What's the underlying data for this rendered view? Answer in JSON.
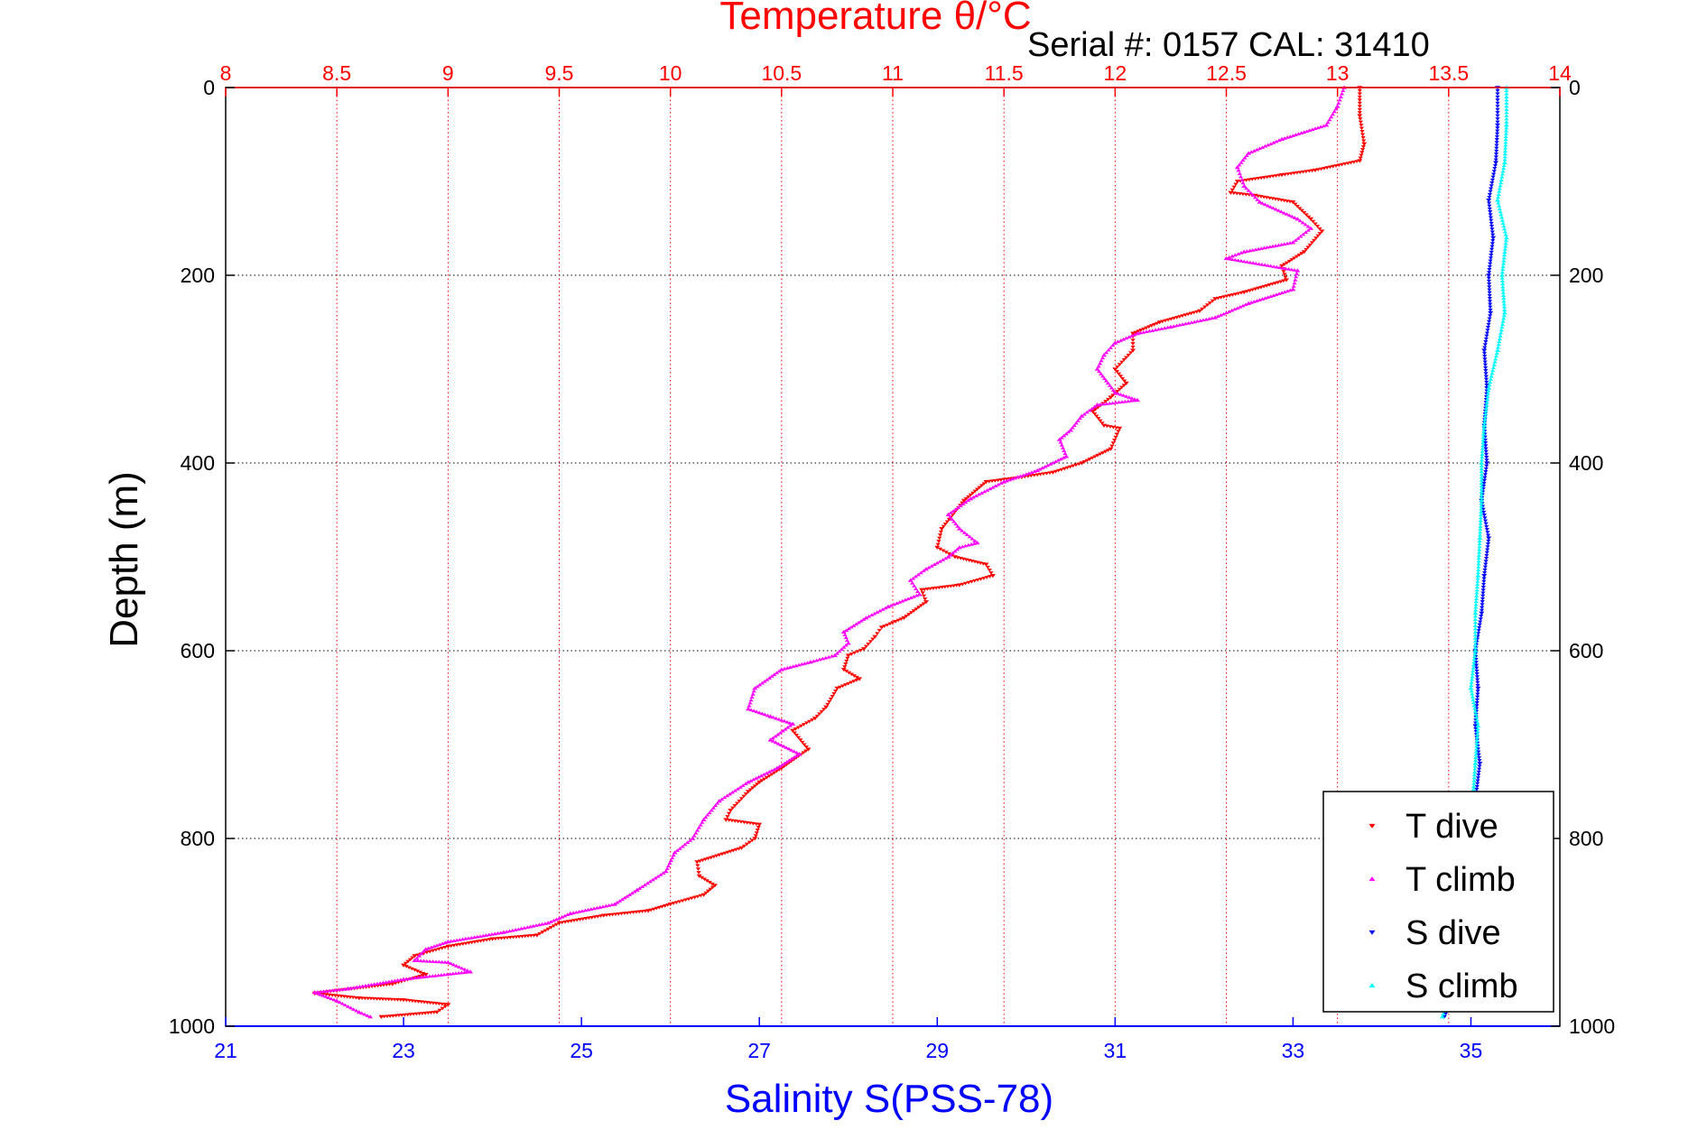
{
  "chart_data": {
    "type": "scatter",
    "title": "Temperature θ/°C",
    "subtitle": "Serial #: 0157  CAL: 31410",
    "xlabel": "Salinity S(PSS-78)",
    "ylabel": "Depth (m)",
    "top_axis": {
      "range": [
        8,
        14
      ],
      "ticks": [
        "8",
        "8.5",
        "9",
        "9.5",
        "10",
        "10.5",
        "11",
        "11.5",
        "12",
        "12.5",
        "13",
        "13.5",
        "14"
      ],
      "color": "#ff0000"
    },
    "bottom_axis": {
      "range": [
        21,
        36
      ],
      "ticks": [
        "21",
        "23",
        "25",
        "27",
        "29",
        "31",
        "33",
        "35"
      ],
      "color": "#0000ff"
    },
    "y_axis": {
      "range": [
        0,
        1000
      ],
      "reversed": true,
      "ticks": [
        "0",
        "200",
        "400",
        "600",
        "800",
        "1000"
      ]
    },
    "grid": true,
    "legend_position": "bottom-right",
    "series": [
      {
        "name": "T dive",
        "axis": "top",
        "color": "#ff0000",
        "marker": "triangle-down",
        "points": [
          [
            13.1,
            0
          ],
          [
            13.1,
            30
          ],
          [
            13.12,
            60
          ],
          [
            13.1,
            78
          ],
          [
            12.9,
            88
          ],
          [
            12.75,
            93
          ],
          [
            12.55,
            100
          ],
          [
            12.52,
            112
          ],
          [
            12.63,
            115
          ],
          [
            12.8,
            122
          ],
          [
            12.88,
            140
          ],
          [
            12.93,
            153
          ],
          [
            12.85,
            175
          ],
          [
            12.75,
            190
          ],
          [
            12.77,
            205
          ],
          [
            12.58,
            218
          ],
          [
            12.45,
            225
          ],
          [
            12.38,
            238
          ],
          [
            12.2,
            250
          ],
          [
            12.08,
            262
          ],
          [
            12.08,
            280
          ],
          [
            12.0,
            300
          ],
          [
            12.05,
            315
          ],
          [
            11.98,
            330
          ],
          [
            11.9,
            345
          ],
          [
            11.95,
            360
          ],
          [
            12.02,
            363
          ],
          [
            11.98,
            385
          ],
          [
            11.85,
            400
          ],
          [
            11.72,
            410
          ],
          [
            11.58,
            415
          ],
          [
            11.42,
            420
          ],
          [
            11.32,
            440
          ],
          [
            11.22,
            470
          ],
          [
            11.2,
            490
          ],
          [
            11.28,
            500
          ],
          [
            11.42,
            508
          ],
          [
            11.45,
            520
          ],
          [
            11.3,
            530
          ],
          [
            11.13,
            535
          ],
          [
            11.15,
            548
          ],
          [
            11.05,
            565
          ],
          [
            10.95,
            575
          ],
          [
            10.92,
            585
          ],
          [
            10.87,
            598
          ],
          [
            10.8,
            605
          ],
          [
            10.78,
            620
          ],
          [
            10.85,
            630
          ],
          [
            10.75,
            640
          ],
          [
            10.7,
            660
          ],
          [
            10.65,
            672
          ],
          [
            10.55,
            685
          ],
          [
            10.62,
            705
          ],
          [
            10.5,
            725
          ],
          [
            10.4,
            740
          ],
          [
            10.35,
            750
          ],
          [
            10.27,
            770
          ],
          [
            10.25,
            780
          ],
          [
            10.4,
            785
          ],
          [
            10.38,
            800
          ],
          [
            10.32,
            810
          ],
          [
            10.12,
            825
          ],
          [
            10.13,
            840
          ],
          [
            10.2,
            850
          ],
          [
            10.15,
            860
          ],
          [
            10.0,
            870
          ],
          [
            9.9,
            877
          ],
          [
            9.7,
            882
          ],
          [
            9.5,
            890
          ],
          [
            9.4,
            903
          ],
          [
            9.2,
            907
          ],
          [
            9.0,
            915
          ],
          [
            8.85,
            925
          ],
          [
            8.8,
            935
          ],
          [
            8.9,
            945
          ],
          [
            8.75,
            955
          ],
          [
            8.5,
            962
          ],
          [
            8.4,
            965
          ],
          [
            8.6,
            970
          ],
          [
            8.8,
            972
          ],
          [
            9.0,
            977
          ],
          [
            8.95,
            985
          ],
          [
            8.7,
            990
          ]
        ]
      },
      {
        "name": "T climb",
        "axis": "top",
        "color": "#ff00ff",
        "marker": "triangle-up",
        "points": [
          [
            13.03,
            0
          ],
          [
            13.0,
            20
          ],
          [
            12.95,
            40
          ],
          [
            12.75,
            55
          ],
          [
            12.6,
            70
          ],
          [
            12.55,
            85
          ],
          [
            12.58,
            105
          ],
          [
            12.65,
            122
          ],
          [
            12.82,
            140
          ],
          [
            12.88,
            150
          ],
          [
            12.8,
            165
          ],
          [
            12.58,
            175
          ],
          [
            12.5,
            182
          ],
          [
            12.82,
            195
          ],
          [
            12.8,
            215
          ],
          [
            12.6,
            230
          ],
          [
            12.45,
            245
          ],
          [
            12.25,
            255
          ],
          [
            12.1,
            262
          ],
          [
            12.0,
            272
          ],
          [
            11.95,
            285
          ],
          [
            11.92,
            300
          ],
          [
            12.0,
            325
          ],
          [
            12.1,
            333
          ],
          [
            11.92,
            338
          ],
          [
            11.85,
            350
          ],
          [
            11.8,
            365
          ],
          [
            11.75,
            375
          ],
          [
            11.78,
            393
          ],
          [
            11.65,
            408
          ],
          [
            11.5,
            420
          ],
          [
            11.35,
            438
          ],
          [
            11.25,
            455
          ],
          [
            11.3,
            470
          ],
          [
            11.38,
            485
          ],
          [
            11.3,
            490
          ],
          [
            11.25,
            500
          ],
          [
            11.15,
            513
          ],
          [
            11.08,
            525
          ],
          [
            11.12,
            540
          ],
          [
            10.98,
            553
          ],
          [
            10.88,
            565
          ],
          [
            10.78,
            580
          ],
          [
            10.8,
            592
          ],
          [
            10.74,
            605
          ],
          [
            10.63,
            612
          ],
          [
            10.5,
            620
          ],
          [
            10.38,
            640
          ],
          [
            10.35,
            662
          ],
          [
            10.45,
            670
          ],
          [
            10.55,
            678
          ],
          [
            10.45,
            695
          ],
          [
            10.58,
            710
          ],
          [
            10.48,
            725
          ],
          [
            10.35,
            740
          ],
          [
            10.22,
            760
          ],
          [
            10.15,
            780
          ],
          [
            10.1,
            800
          ],
          [
            10.02,
            815
          ],
          [
            9.98,
            835
          ],
          [
            9.85,
            855
          ],
          [
            9.75,
            870
          ],
          [
            9.55,
            880
          ],
          [
            9.45,
            890
          ],
          [
            9.25,
            900
          ],
          [
            9.0,
            910
          ],
          [
            8.9,
            918
          ],
          [
            8.85,
            930
          ],
          [
            9.0,
            932
          ],
          [
            9.1,
            942
          ],
          [
            8.8,
            950
          ],
          [
            8.55,
            960
          ],
          [
            8.4,
            964
          ],
          [
            8.5,
            973
          ],
          [
            8.6,
            985
          ],
          [
            8.65,
            990
          ]
        ]
      },
      {
        "name": "S dive",
        "axis": "bottom",
        "color": "#0000ff",
        "marker": "triangle-down",
        "points": [
          [
            35.3,
            0
          ],
          [
            35.3,
            40
          ],
          [
            35.28,
            80
          ],
          [
            35.2,
            120
          ],
          [
            35.25,
            160
          ],
          [
            35.2,
            200
          ],
          [
            35.22,
            240
          ],
          [
            35.15,
            280
          ],
          [
            35.18,
            320
          ],
          [
            35.15,
            360
          ],
          [
            35.18,
            400
          ],
          [
            35.12,
            440
          ],
          [
            35.2,
            480
          ],
          [
            35.15,
            520
          ],
          [
            35.12,
            560
          ],
          [
            35.05,
            600
          ],
          [
            35.08,
            640
          ],
          [
            35.05,
            680
          ],
          [
            35.1,
            720
          ],
          [
            35.05,
            760
          ],
          [
            35.05,
            800
          ],
          [
            35.0,
            840
          ],
          [
            34.98,
            880
          ],
          [
            34.95,
            920
          ],
          [
            34.85,
            960
          ],
          [
            34.7,
            990
          ]
        ]
      },
      {
        "name": "S climb",
        "axis": "bottom",
        "color": "#00ffff",
        "marker": "triangle-up",
        "points": [
          [
            35.4,
            0
          ],
          [
            35.4,
            40
          ],
          [
            35.38,
            80
          ],
          [
            35.3,
            120
          ],
          [
            35.4,
            160
          ],
          [
            35.35,
            200
          ],
          [
            35.38,
            240
          ],
          [
            35.3,
            280
          ],
          [
            35.2,
            320
          ],
          [
            35.15,
            360
          ],
          [
            35.12,
            400
          ],
          [
            35.12,
            440
          ],
          [
            35.1,
            480
          ],
          [
            35.08,
            520
          ],
          [
            35.05,
            560
          ],
          [
            35.05,
            600
          ],
          [
            35.0,
            640
          ],
          [
            35.08,
            680
          ],
          [
            35.05,
            720
          ],
          [
            35.02,
            760
          ],
          [
            35.0,
            800
          ],
          [
            34.98,
            840
          ],
          [
            34.9,
            880
          ],
          [
            34.85,
            920
          ],
          [
            34.78,
            960
          ],
          [
            34.68,
            990
          ]
        ]
      }
    ]
  }
}
